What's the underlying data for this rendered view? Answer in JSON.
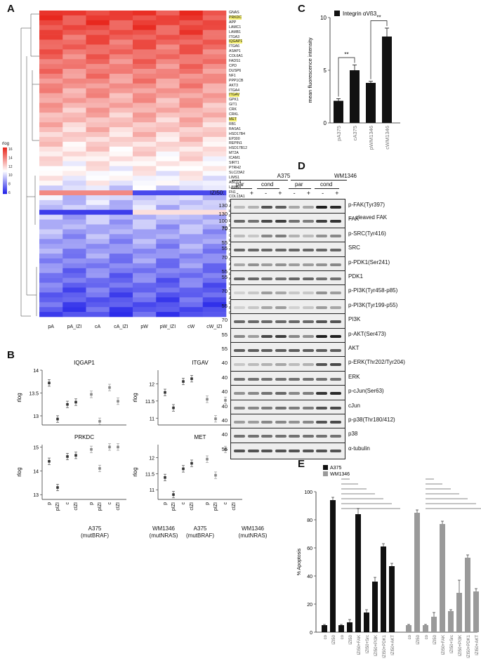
{
  "panels": {
    "A": "A",
    "B": "B",
    "C": "C",
    "D": "D",
    "E": "E"
  },
  "heatmap": {
    "legend_title": "rlog",
    "legend_ticks": [
      "16",
      "14",
      "12",
      "10",
      "8",
      "6"
    ],
    "columns": [
      "pA",
      "pA_IZI",
      "cA",
      "cA_IZI",
      "pW",
      "pW_IZI",
      "cW",
      "cW_IZI"
    ],
    "genes": [
      "GNAS",
      "PRKDC",
      "APP",
      "LAMC1",
      "LAMB1",
      "ITGA3",
      "IQGAP1",
      "ITGA6",
      "ASAP1",
      "COL6A1",
      "FADS1",
      "CPD",
      "DUSP6",
      "NF1",
      "PPP1CB",
      "AKT3",
      "ITGA4",
      "ITGAV",
      "GPK1",
      "GIT1",
      "CRK",
      "CRKL",
      "MET",
      "RB1",
      "RASA1",
      "HSD17B4",
      "EP300",
      "REPIN1",
      "HSD17B12",
      "MT2A",
      "ICAM1",
      "SIRT1",
      "PTRH2",
      "SLC23A2",
      "LIMS1",
      "ABCC4",
      "LAMA4",
      "FN1",
      "COL13A1",
      "PTPRM",
      "ABLIM1",
      "HBEGF",
      "RNF34",
      "ESRRA",
      "RARA",
      "SMOX",
      "CAT",
      "EYA4",
      "SLC11A2",
      "MAP1KS",
      "CDC14B",
      "CPS1",
      "ATG7",
      "ARHGAP26",
      "PDE4B",
      "NEO1",
      "IRF1",
      "DUSP10",
      "PTPN4",
      "ATP7A",
      "DNAJC6",
      "PPCDC",
      "CASP6"
    ],
    "highlighted": [
      "PRKDC",
      "IQGAP1",
      "ITGAV",
      "MET"
    ],
    "colors": {
      "high": "#e8281e",
      "mid": "#ffffff",
      "low": "#1b1be8",
      "highlight": "#f4ef70"
    }
  },
  "chart_data": [
    {
      "type": "scatter",
      "panel": "B",
      "title": "IQGAP1",
      "ylabel": "rlog",
      "ylim": [
        12.8,
        14
      ],
      "yticks": [
        "13",
        "13.5",
        "14"
      ],
      "x": [
        "p",
        "pIZI",
        "c",
        "cIZI",
        "p",
        "pIZI",
        "c",
        "cIZI"
      ],
      "values": [
        13.72,
        12.93,
        13.25,
        13.3,
        13.47,
        12.88,
        13.62,
        13.32
      ]
    },
    {
      "type": "scatter",
      "panel": "B",
      "title": "ITGAV",
      "ylabel": "rlog",
      "ylim": [
        10.8,
        12.4
      ],
      "yticks": [
        "11",
        "11.5",
        "12"
      ],
      "x": [
        "p",
        "pIZI",
        "c",
        "cIZI",
        "p",
        "pIZI",
        "c",
        "cIZI"
      ],
      "values": [
        11.75,
        11.3,
        12.07,
        12.15,
        11.55,
        10.98,
        11.52,
        11.75
      ]
    },
    {
      "type": "scatter",
      "panel": "B",
      "title": "PRKDC",
      "ylabel": "rlog",
      "ylim": [
        12.8,
        15.1
      ],
      "yticks": [
        "13",
        "14",
        "15"
      ],
      "x": [
        "p",
        "pIZI",
        "c",
        "cIZI",
        "p",
        "pIZI",
        "c",
        "cIZI"
      ],
      "values": [
        14.4,
        13.3,
        14.6,
        14.65,
        14.9,
        14.1,
        15.0,
        15.0
      ]
    },
    {
      "type": "scatter",
      "panel": "B",
      "title": "MET",
      "ylabel": "rlog",
      "ylim": [
        10.7,
        12.4
      ],
      "yticks": [
        "11",
        "11.5",
        "12"
      ],
      "x": [
        "p",
        "pIZI",
        "c",
        "cIZI",
        "p",
        "pIZI",
        "c",
        "cIZI"
      ],
      "values": [
        11.38,
        10.85,
        11.65,
        11.82,
        11.95,
        11.45,
        12.25,
        12.15
      ]
    },
    {
      "type": "bar",
      "panel": "C",
      "categories": [
        "pA375",
        "cA375",
        "pWM1346",
        "cWM1346"
      ],
      "values": [
        2.1,
        5.0,
        3.8,
        8.2
      ],
      "errors": [
        0.2,
        0.5,
        0.15,
        0.8
      ],
      "ylabel": "mean fluorescence intensity",
      "ylim": [
        0,
        10
      ],
      "yticks": [
        "0",
        "5",
        "10"
      ],
      "legend": "Integrin αVß3",
      "significance": "**"
    },
    {
      "type": "bar",
      "panel": "E",
      "ylabel": "% Apoptosis",
      "ylim": [
        0,
        100
      ],
      "yticks": [
        "0",
        "20",
        "40",
        "60",
        "80",
        "100"
      ],
      "categories": [
        "co",
        "IZI50",
        "co",
        "IZI50",
        "IZI50+FAK",
        "IZI50+Src",
        "IZI50+PI3K",
        "IZI50+PDK1",
        "IZI50+AKT"
      ],
      "series": [
        {
          "name": "A375",
          "color": "#111111",
          "values": [
            5,
            94,
            5,
            7,
            84,
            14,
            36,
            61,
            47
          ],
          "errors": [
            0.5,
            2,
            0.5,
            2,
            4,
            2,
            3,
            2,
            2
          ]
        },
        {
          "name": "WM1346",
          "color": "#9a9a9a",
          "values": [
            5,
            85,
            5,
            11,
            77,
            15,
            28,
            53,
            29
          ],
          "errors": [
            0.5,
            2,
            0.5,
            3,
            2,
            1,
            9,
            2,
            2
          ]
        }
      ],
      "group_labels": [
        "par",
        "cond",
        "par",
        "cond"
      ],
      "sig_labels": [
        "****",
        "n.s.",
        "****",
        "****",
        "**",
        "****",
        "***",
        "****",
        "*",
        "****",
        "n.s.",
        "*",
        "***",
        "**",
        "n.s."
      ]
    }
  ],
  "panelB": {
    "group_left": "A375",
    "group_left_sub": "(mutBRAF)",
    "group_right": "WM1346",
    "group_right_sub": "(mutNRAS)"
  },
  "western": {
    "header_a375": "A375",
    "header_wm": "WM1346",
    "par": "par",
    "cond": "cond",
    "izi_label": "IZI50:",
    "lane_signs": [
      "-",
      "+",
      "-",
      "+",
      "-",
      "+",
      "-",
      "+"
    ],
    "cleaved_label": "cleaved FAK",
    "rows": [
      {
        "mw": [
          "130"
        ],
        "name": "p-FAK(Tyr397)"
      },
      {
        "mw": [
          "130",
          "100",
          "70"
        ],
        "name": "FAK"
      },
      {
        "mw": [
          "70",
          "55"
        ],
        "name": "p-SRC(Tyr416)"
      },
      {
        "mw": [
          "55"
        ],
        "name": "SRC"
      },
      {
        "mw": [
          "70",
          "55"
        ],
        "name": "p-PDK1(Ser241)"
      },
      {
        "mw": [
          "55"
        ],
        "name": "PDK1"
      },
      {
        "mw": [
          "70"
        ],
        "name": "p-PI3K(Tyr458-p85)"
      },
      {
        "mw": [
          "55"
        ],
        "name": "p-PI3K(Tyr199-p55)"
      },
      {
        "mw": [
          "70"
        ],
        "name": "PI3K"
      },
      {
        "mw": [
          "55"
        ],
        "name": "p-AKT(Ser473)"
      },
      {
        "mw": [
          "55"
        ],
        "name": "AKT"
      },
      {
        "mw": [
          "40"
        ],
        "name": "p-ERK(Thr202/Tyr204)"
      },
      {
        "mw": [
          "40"
        ],
        "name": "ERK"
      },
      {
        "mw": [
          "40"
        ],
        "name": "p-cJun(Ser63)"
      },
      {
        "mw": [
          "40"
        ],
        "name": "cJun"
      },
      {
        "mw": [
          "40"
        ],
        "name": "p-p38(Thr180/412)"
      },
      {
        "mw": [
          "40"
        ],
        "name": "p38"
      },
      {
        "mw": [
          "55"
        ],
        "name": "α-tubulin"
      }
    ]
  }
}
